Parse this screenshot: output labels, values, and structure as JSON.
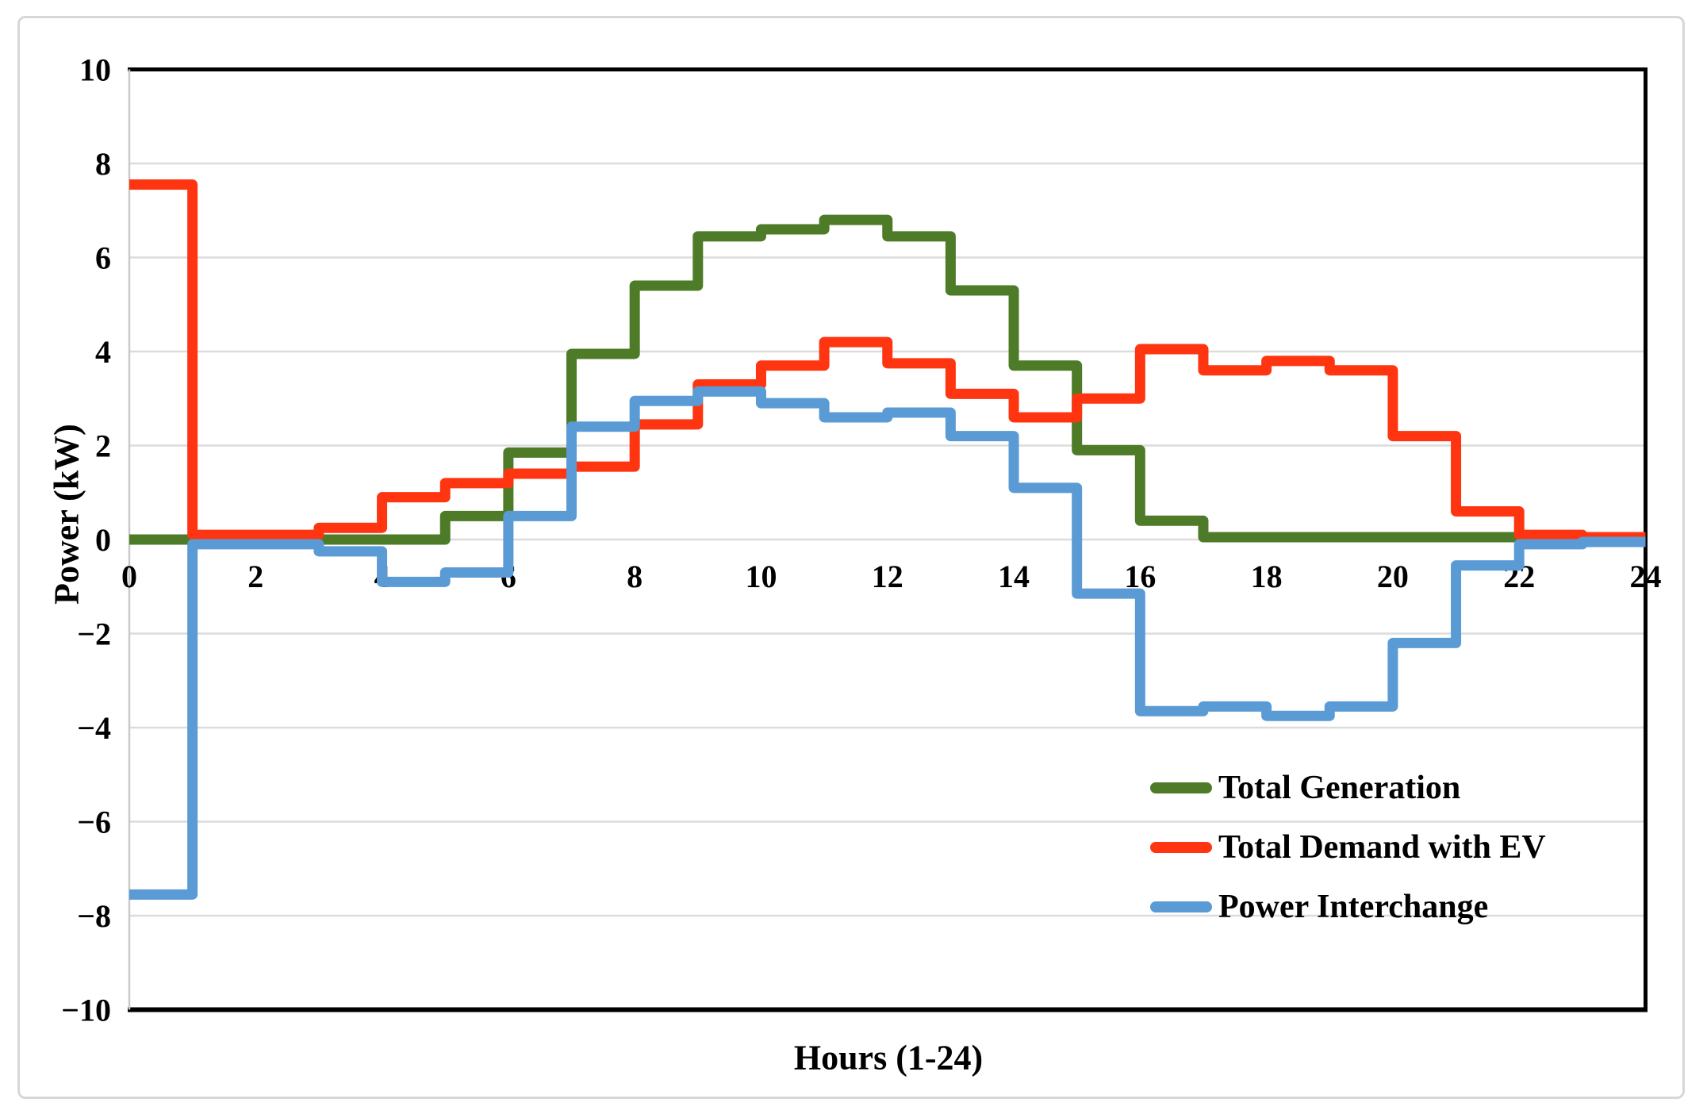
{
  "figure": {
    "background": "#ffffff",
    "frame_color": "#d7d7d7",
    "plot_border_color": "#000000",
    "axis_line_color": "#c9c9c9",
    "gridline_color": "#dcdcdc",
    "text_color": "#000000"
  },
  "chart_data": {
    "type": "line",
    "subtype": "step-hourly",
    "title": "",
    "xlabel": "Hours (1-24)",
    "ylabel": "Power (kW)",
    "xlim": [
      0,
      24
    ],
    "ylim": [
      -10,
      10
    ],
    "grid": "horizontal",
    "legend_position": "inside-lower-right",
    "x_tick_labels": [
      "0",
      "2",
      "4",
      "6",
      "8",
      "10",
      "12",
      "14",
      "16",
      "18",
      "20",
      "22",
      "24"
    ],
    "x_tick_values": [
      0,
      2,
      4,
      6,
      8,
      10,
      12,
      14,
      16,
      18,
      20,
      22,
      24
    ],
    "y_tick_labels": [
      "10",
      "8",
      "6",
      "4",
      "2",
      "0",
      "−2",
      "−4",
      "−6",
      "−8",
      "−10"
    ],
    "y_tick_values": [
      10,
      8,
      6,
      4,
      2,
      0,
      -2,
      -4,
      -6,
      -8,
      -10
    ],
    "hour_intervals": [
      "0-1",
      "1-2",
      "2-3",
      "3-4",
      "4-5",
      "5-6",
      "6-7",
      "7-8",
      "8-9",
      "9-10",
      "10-11",
      "11-12",
      "12-13",
      "13-14",
      "14-15",
      "15-16",
      "16-17",
      "17-18",
      "18-19",
      "19-20",
      "20-21",
      "21-22",
      "22-23",
      "23-24"
    ],
    "series": [
      {
        "name": "Total Generation",
        "color": "#4e7b28",
        "values": [
          0,
          0,
          0,
          0,
          0,
          0.5,
          1.85,
          3.95,
          5.4,
          6.45,
          6.6,
          6.8,
          6.45,
          5.3,
          3.7,
          1.9,
          0.4,
          0.05,
          0.05,
          0.05,
          0.05,
          0.05,
          0.05,
          0.05
        ]
      },
      {
        "name": "Total Demand with EV",
        "color": "#fe3510",
        "values": [
          7.55,
          0.1,
          0.1,
          0.25,
          0.9,
          1.2,
          1.4,
          1.55,
          2.45,
          3.3,
          3.7,
          4.2,
          3.75,
          3.1,
          2.6,
          3.0,
          4.05,
          3.6,
          3.8,
          3.6,
          2.2,
          0.6,
          0.1,
          0.05
        ]
      },
      {
        "name": "Power Interchange",
        "color": "#5b9bd5",
        "values": [
          -7.55,
          -0.1,
          -0.1,
          -0.25,
          -0.9,
          -0.7,
          0.5,
          2.4,
          2.95,
          3.15,
          2.9,
          2.6,
          2.7,
          2.2,
          1.1,
          -1.15,
          -3.65,
          -3.55,
          -3.75,
          -3.55,
          -2.2,
          -0.55,
          -0.1,
          -0.05
        ]
      }
    ]
  }
}
